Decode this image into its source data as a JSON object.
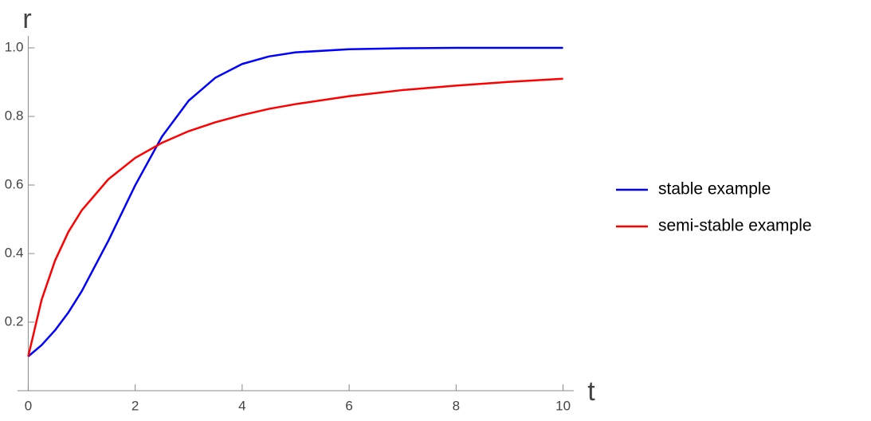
{
  "chart_data": {
    "type": "line",
    "x_label": "t",
    "y_label": "r",
    "x": [
      0,
      0.25,
      0.5,
      0.75,
      1,
      1.5,
      2,
      2.5,
      3,
      3.5,
      4,
      4.5,
      5,
      6,
      7,
      8,
      9,
      10
    ],
    "series": [
      {
        "name": "stable example",
        "color": "#0000ff",
        "values": [
          0.1,
          0.133,
          0.176,
          0.228,
          0.29,
          0.438,
          0.599,
          0.741,
          0.846,
          0.913,
          0.953,
          0.975,
          0.987,
          0.996,
          0.999,
          1.0,
          1.0,
          1.0
        ]
      },
      {
        "name": "semi-stable example",
        "color": "#ff0000",
        "values": [
          0.1,
          0.265,
          0.379,
          0.463,
          0.526,
          0.617,
          0.679,
          0.723,
          0.757,
          0.783,
          0.804,
          0.822,
          0.836,
          0.859,
          0.877,
          0.89,
          0.901,
          0.91
        ]
      }
    ],
    "xlim": [
      -0.2,
      10.2
    ],
    "ylim": [
      0,
      1.035
    ],
    "xticks": [
      0,
      2,
      4,
      6,
      8,
      10
    ],
    "yticks": [
      0.2,
      0.4,
      0.6,
      0.8,
      {
        "value": 1,
        "label": "1.0"
      }
    ],
    "grid": false,
    "legend": "right"
  }
}
